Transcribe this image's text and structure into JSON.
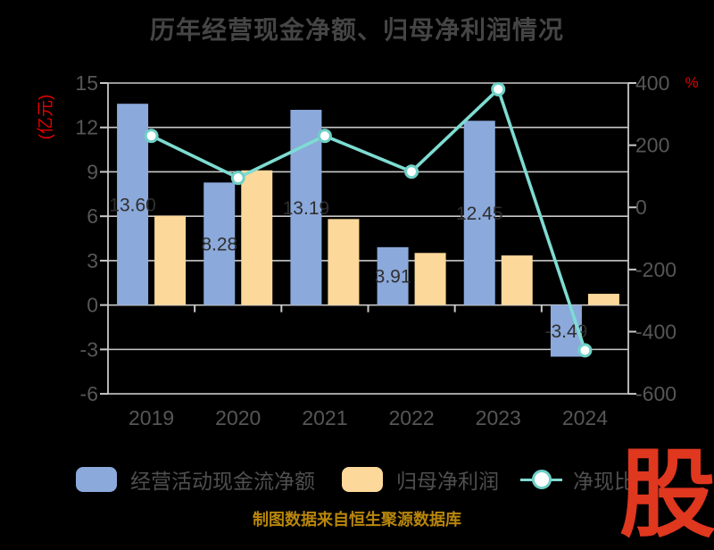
{
  "title": "历年经营现金净额、归母净利润情况",
  "caption": "制图数据来自恒生聚源数据库",
  "logo_glyph": "股",
  "colors": {
    "background": "#000000",
    "bar_blue": "#8BA9DB",
    "bar_orange": "#FCD89A",
    "line_teal": "#7EDCD2",
    "marker_fill": "#FFFFFF",
    "marker_stroke": "#6ED0C6",
    "grid": "#C9C9C9",
    "tick_label": "#565656",
    "axis_unit_red": "#E60000",
    "bar_label": "#2F2F2F"
  },
  "legend": {
    "items": [
      {
        "label": "经营活动现金流净额",
        "marker": "blue-square"
      },
      {
        "label": "归母净利润",
        "marker": "orange-square"
      },
      {
        "label": "净现比",
        "marker": "teal-line-circle"
      }
    ]
  },
  "chart_data": {
    "type": "bar",
    "subtype": "grouped-bars-with-line-overlay",
    "title": "历年经营现金净额、归母净利润情况",
    "categories": [
      "2019",
      "2020",
      "2021",
      "2022",
      "2023",
      "2024"
    ],
    "series": [
      {
        "name": "经营活动现金流净额",
        "type": "bar",
        "axis": "left",
        "values": [
          13.6,
          8.28,
          13.19,
          3.91,
          12.45,
          -3.49
        ],
        "labels": [
          "13.60",
          "8.28",
          "13.19",
          "3.91",
          "12.45",
          "-3.49"
        ]
      },
      {
        "name": "归母净利润",
        "type": "bar",
        "axis": "left",
        "values": [
          6.04,
          9.1,
          5.81,
          3.52,
          3.35,
          0.76
        ]
      },
      {
        "name": "净现比",
        "type": "line",
        "axis": "right",
        "values": [
          230,
          95,
          230,
          115,
          380,
          -460
        ]
      }
    ],
    "left_axis": {
      "unit": "(亿元)",
      "ticks": [
        15,
        12,
        9,
        6,
        3,
        0,
        -3,
        -6
      ],
      "range": [
        -6,
        15
      ]
    },
    "right_axis": {
      "unit": "%",
      "ticks": [
        400,
        200,
        0,
        -200,
        -400,
        -600
      ],
      "range": [
        -600,
        400
      ]
    },
    "grid": true,
    "legend_position": "bottom"
  }
}
